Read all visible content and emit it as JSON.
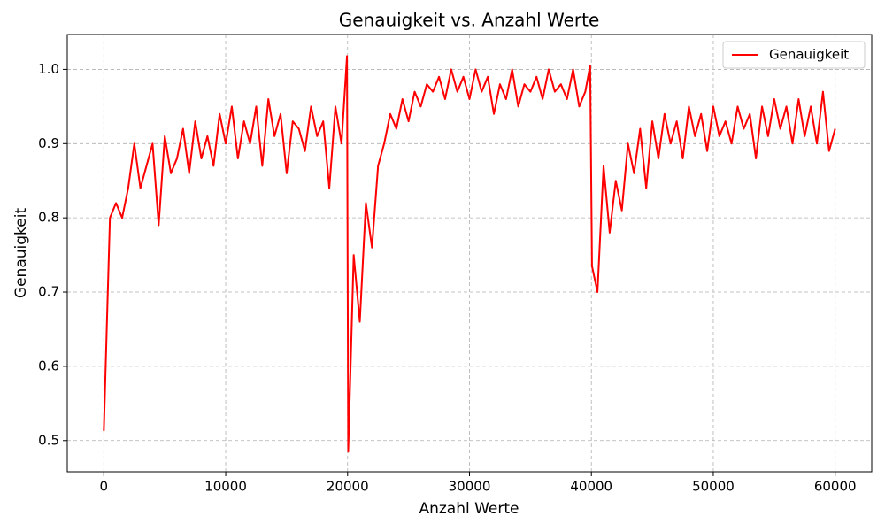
{
  "chart_data": {
    "type": "line",
    "title": "Genauigkeit vs. Anzahl Werte",
    "x_label": "Anzahl Werte",
    "y_label": "Genauigkeit",
    "xlim": [
      -3000,
      63000
    ],
    "ylim": [
      0.458,
      1.047
    ],
    "xticks": [
      0,
      10000,
      20000,
      30000,
      40000,
      50000,
      60000
    ],
    "yticks": [
      0.5,
      0.6,
      0.7,
      0.8,
      0.9,
      {
        "value": 1,
        "label": "1.0"
      }
    ],
    "grid": true,
    "legend": "upper right",
    "x": [
      0,
      500,
      1000,
      1500,
      2000,
      2500,
      3000,
      3500,
      4000,
      4500,
      5000,
      5500,
      6000,
      6500,
      7000,
      7500,
      8000,
      8500,
      9000,
      9500,
      10000,
      10500,
      11000,
      11500,
      12000,
      12500,
      13000,
      13500,
      14000,
      14500,
      15000,
      15500,
      16000,
      16500,
      17000,
      17500,
      18000,
      18500,
      19000,
      19500,
      19950,
      20050,
      20500,
      21000,
      21500,
      22000,
      22500,
      23000,
      23500,
      24000,
      24500,
      25000,
      25500,
      26000,
      26500,
      27000,
      27500,
      28000,
      28500,
      29000,
      29500,
      30000,
      30500,
      31000,
      31500,
      32000,
      32500,
      33000,
      33500,
      34000,
      34500,
      35000,
      35500,
      36000,
      36500,
      37000,
      37500,
      38000,
      38500,
      39000,
      39500,
      39900,
      40050,
      40500,
      41000,
      41500,
      42000,
      42500,
      43000,
      43500,
      44000,
      44500,
      45000,
      45500,
      46000,
      46500,
      47000,
      47500,
      48000,
      48500,
      49000,
      49500,
      50000,
      50500,
      51000,
      51500,
      52000,
      52500,
      53000,
      53500,
      54000,
      54500,
      55000,
      55500,
      56000,
      56500,
      57000,
      57500,
      58000,
      58500,
      59000,
      59500,
      60000
    ],
    "series": [
      {
        "name": "Genauigkeit",
        "color": "#ff0000",
        "values": [
          0.513,
          0.8,
          0.82,
          0.8,
          0.84,
          0.9,
          0.84,
          0.87,
          0.9,
          0.79,
          0.91,
          0.86,
          0.88,
          0.92,
          0.86,
          0.93,
          0.88,
          0.91,
          0.87,
          0.94,
          0.9,
          0.95,
          0.88,
          0.93,
          0.9,
          0.95,
          0.87,
          0.96,
          0.91,
          0.94,
          0.86,
          0.93,
          0.92,
          0.89,
          0.95,
          0.91,
          0.93,
          0.84,
          0.95,
          0.9,
          1.018,
          0.485,
          0.75,
          0.66,
          0.82,
          0.76,
          0.87,
          0.9,
          0.94,
          0.92,
          0.96,
          0.93,
          0.97,
          0.95,
          0.98,
          0.97,
          0.99,
          0.96,
          1.0,
          0.97,
          0.99,
          0.96,
          1.0,
          0.97,
          0.99,
          0.94,
          0.98,
          0.96,
          1.0,
          0.95,
          0.98,
          0.97,
          0.99,
          0.96,
          1.0,
          0.97,
          0.98,
          0.96,
          1.0,
          0.95,
          0.97,
          1.005,
          0.735,
          0.7,
          0.87,
          0.78,
          0.85,
          0.81,
          0.9,
          0.86,
          0.92,
          0.84,
          0.93,
          0.88,
          0.94,
          0.9,
          0.93,
          0.88,
          0.95,
          0.91,
          0.94,
          0.89,
          0.95,
          0.91,
          0.93,
          0.9,
          0.95,
          0.92,
          0.94,
          0.88,
          0.95,
          0.91,
          0.96,
          0.92,
          0.95,
          0.9,
          0.96,
          0.91,
          0.95,
          0.9,
          0.97,
          0.89,
          0.92
        ]
      }
    ]
  }
}
